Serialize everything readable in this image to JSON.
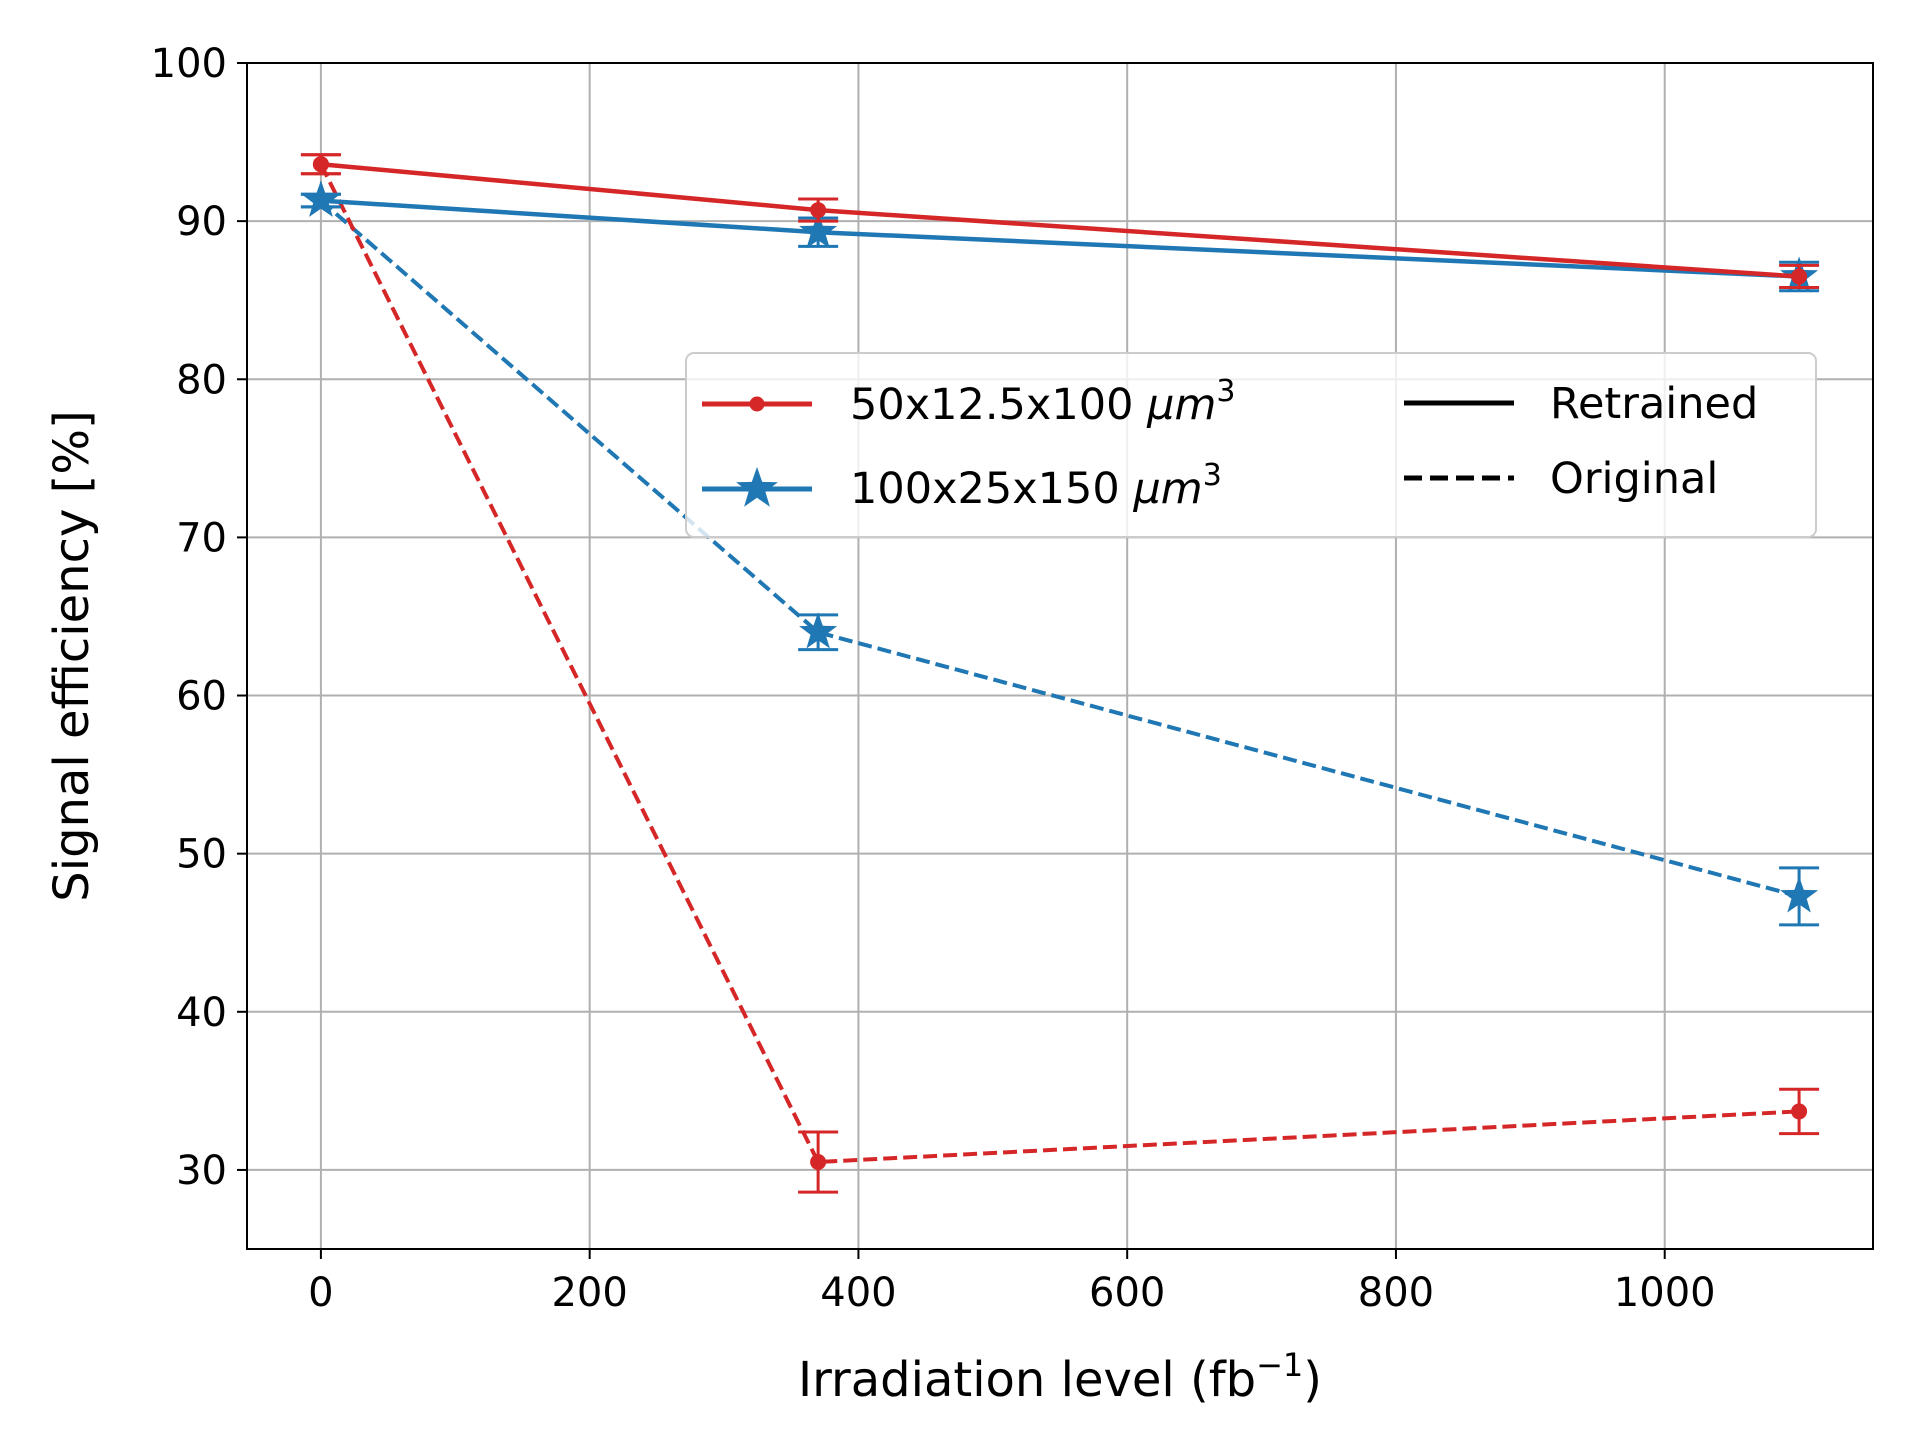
{
  "chart_data": {
    "type": "line",
    "xlabel": "Irradiation level (fb",
    "xlabel_sup": "−1",
    "xlabel_close": ")",
    "ylabel": "Signal efficiency [%]",
    "xlim": [
      -55,
      1155
    ],
    "ylim": [
      25,
      100
    ],
    "xticks": [
      0,
      200,
      400,
      600,
      800,
      1000
    ],
    "yticks": [
      30,
      40,
      50,
      60,
      70,
      80,
      90,
      100
    ],
    "xtick_labels": [
      "0",
      "200",
      "400",
      "600",
      "800",
      "1000"
    ],
    "ytick_labels": [
      "30",
      "40",
      "50",
      "60",
      "70",
      "80",
      "90",
      "100"
    ],
    "grid": true,
    "legend_position": "center-right",
    "series": [
      {
        "name": "50x12.5x100",
        "unit": "μm",
        "unit_exp": "3",
        "color": "#d62728",
        "marker": "circle",
        "style": "solid",
        "group": "Retrained",
        "x": [
          0,
          370,
          1100
        ],
        "y": [
          93.6,
          90.7,
          86.5
        ],
        "err": [
          0.6,
          0.7,
          0.7
        ]
      },
      {
        "name": "100x25x150",
        "unit": "μm",
        "unit_exp": "3",
        "color": "#1f77b4",
        "marker": "star",
        "style": "solid",
        "group": "Retrained",
        "x": [
          0,
          370,
          1100
        ],
        "y": [
          91.3,
          89.3,
          86.5
        ],
        "err": [
          0.4,
          0.9,
          0.9
        ]
      },
      {
        "name": "50x12.5x100",
        "color": "#d62728",
        "marker": "circle",
        "style": "dashed",
        "group": "Original",
        "x": [
          0,
          370,
          1100
        ],
        "y": [
          93.6,
          30.5,
          33.7
        ],
        "err": [
          0.6,
          1.9,
          1.4
        ]
      },
      {
        "name": "100x25x150",
        "color": "#1f77b4",
        "marker": "star",
        "style": "dashed",
        "group": "Original",
        "x": [
          0,
          370,
          1100
        ],
        "y": [
          91.3,
          64.0,
          47.3
        ],
        "err": [
          0.4,
          1.1,
          1.8
        ]
      }
    ],
    "legend": {
      "entries": [
        {
          "label": "50x12.5x100 ",
          "unit": "μm",
          "exp": "3",
          "color": "#d62728",
          "marker": "circle"
        },
        {
          "label": "100x25x150 ",
          "unit": "μm",
          "exp": "3",
          "color": "#1f77b4",
          "marker": "star"
        }
      ],
      "styles": [
        {
          "label": "Retrained",
          "style": "solid"
        },
        {
          "label": "Original",
          "style": "dashed"
        }
      ]
    }
  }
}
